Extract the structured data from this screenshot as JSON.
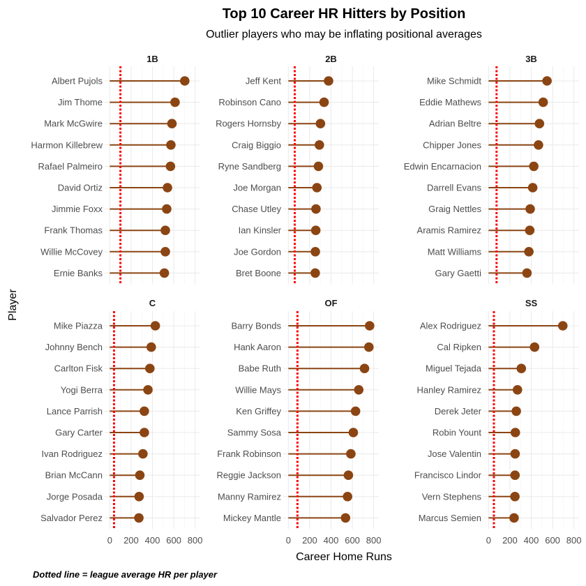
{
  "chart_data": {
    "type": "lollipop",
    "title": "Top 10 Career HR Hitters by Position",
    "subtitle": "Outlier players who may be inflating positional averages",
    "xlabel": "Career Home Runs",
    "ylabel": "Player",
    "caption": "Dotted line = league average HR per player",
    "xlim": [
      0,
      800
    ],
    "xticks": [
      0,
      200,
      400,
      600,
      800
    ],
    "grid": true,
    "colors": {
      "segment": "#8B4513",
      "point": "#8B4513",
      "average_line": "#FF0000"
    },
    "facets": [
      {
        "position": "1B",
        "league_average": 100,
        "players": [
          {
            "name": "Albert Pujols",
            "hr": 703
          },
          {
            "name": "Jim Thome",
            "hr": 612
          },
          {
            "name": "Mark McGwire",
            "hr": 583
          },
          {
            "name": "Harmon Killebrew",
            "hr": 573
          },
          {
            "name": "Rafael Palmeiro",
            "hr": 569
          },
          {
            "name": "David Ortiz",
            "hr": 541
          },
          {
            "name": "Jimmie Foxx",
            "hr": 534
          },
          {
            "name": "Frank Thomas",
            "hr": 521
          },
          {
            "name": "Willie McCovey",
            "hr": 521
          },
          {
            "name": "Ernie Banks",
            "hr": 512
          }
        ]
      },
      {
        "position": "2B",
        "league_average": 60,
        "players": [
          {
            "name": "Jeff Kent",
            "hr": 377
          },
          {
            "name": "Robinson Cano",
            "hr": 335
          },
          {
            "name": "Rogers Hornsby",
            "hr": 301
          },
          {
            "name": "Craig Biggio",
            "hr": 291
          },
          {
            "name": "Ryne Sandberg",
            "hr": 282
          },
          {
            "name": "Joe Morgan",
            "hr": 268
          },
          {
            "name": "Chase Utley",
            "hr": 259
          },
          {
            "name": "Ian Kinsler",
            "hr": 257
          },
          {
            "name": "Joe Gordon",
            "hr": 253
          },
          {
            "name": "Bret Boone",
            "hr": 252
          }
        ]
      },
      {
        "position": "3B",
        "league_average": 75,
        "players": [
          {
            "name": "Mike Schmidt",
            "hr": 548
          },
          {
            "name": "Eddie Mathews",
            "hr": 512
          },
          {
            "name": "Adrian Beltre",
            "hr": 477
          },
          {
            "name": "Chipper Jones",
            "hr": 468
          },
          {
            "name": "Edwin Encarnacion",
            "hr": 424
          },
          {
            "name": "Darrell Evans",
            "hr": 414
          },
          {
            "name": "Graig Nettles",
            "hr": 390
          },
          {
            "name": "Aramis Ramirez",
            "hr": 386
          },
          {
            "name": "Matt Williams",
            "hr": 378
          },
          {
            "name": "Gary Gaetti",
            "hr": 360
          }
        ]
      },
      {
        "position": "C",
        "league_average": 40,
        "players": [
          {
            "name": "Mike Piazza",
            "hr": 427
          },
          {
            "name": "Johnny Bench",
            "hr": 389
          },
          {
            "name": "Carlton Fisk",
            "hr": 376
          },
          {
            "name": "Yogi Berra",
            "hr": 358
          },
          {
            "name": "Lance Parrish",
            "hr": 324
          },
          {
            "name": "Gary Carter",
            "hr": 324
          },
          {
            "name": "Ivan Rodriguez",
            "hr": 311
          },
          {
            "name": "Brian McCann",
            "hr": 282
          },
          {
            "name": "Jorge Posada",
            "hr": 275
          },
          {
            "name": "Salvador Perez",
            "hr": 273
          }
        ]
      },
      {
        "position": "OF",
        "league_average": 85,
        "players": [
          {
            "name": "Barry Bonds",
            "hr": 762
          },
          {
            "name": "Hank Aaron",
            "hr": 755
          },
          {
            "name": "Babe Ruth",
            "hr": 714
          },
          {
            "name": "Willie Mays",
            "hr": 660
          },
          {
            "name": "Ken Griffey",
            "hr": 630
          },
          {
            "name": "Sammy Sosa",
            "hr": 609
          },
          {
            "name": "Frank Robinson",
            "hr": 586
          },
          {
            "name": "Reggie Jackson",
            "hr": 563
          },
          {
            "name": "Manny Ramirez",
            "hr": 555
          },
          {
            "name": "Mickey Mantle",
            "hr": 536
          }
        ]
      },
      {
        "position": "SS",
        "league_average": 50,
        "players": [
          {
            "name": "Alex Rodriguez",
            "hr": 696
          },
          {
            "name": "Cal Ripken",
            "hr": 431
          },
          {
            "name": "Miguel Tejada",
            "hr": 307
          },
          {
            "name": "Hanley Ramirez",
            "hr": 271
          },
          {
            "name": "Derek Jeter",
            "hr": 260
          },
          {
            "name": "Robin Yount",
            "hr": 251
          },
          {
            "name": "Jose Valentin",
            "hr": 249
          },
          {
            "name": "Francisco Lindor",
            "hr": 248
          },
          {
            "name": "Vern Stephens",
            "hr": 247
          },
          {
            "name": "Marcus Semien",
            "hr": 239
          }
        ]
      }
    ]
  }
}
